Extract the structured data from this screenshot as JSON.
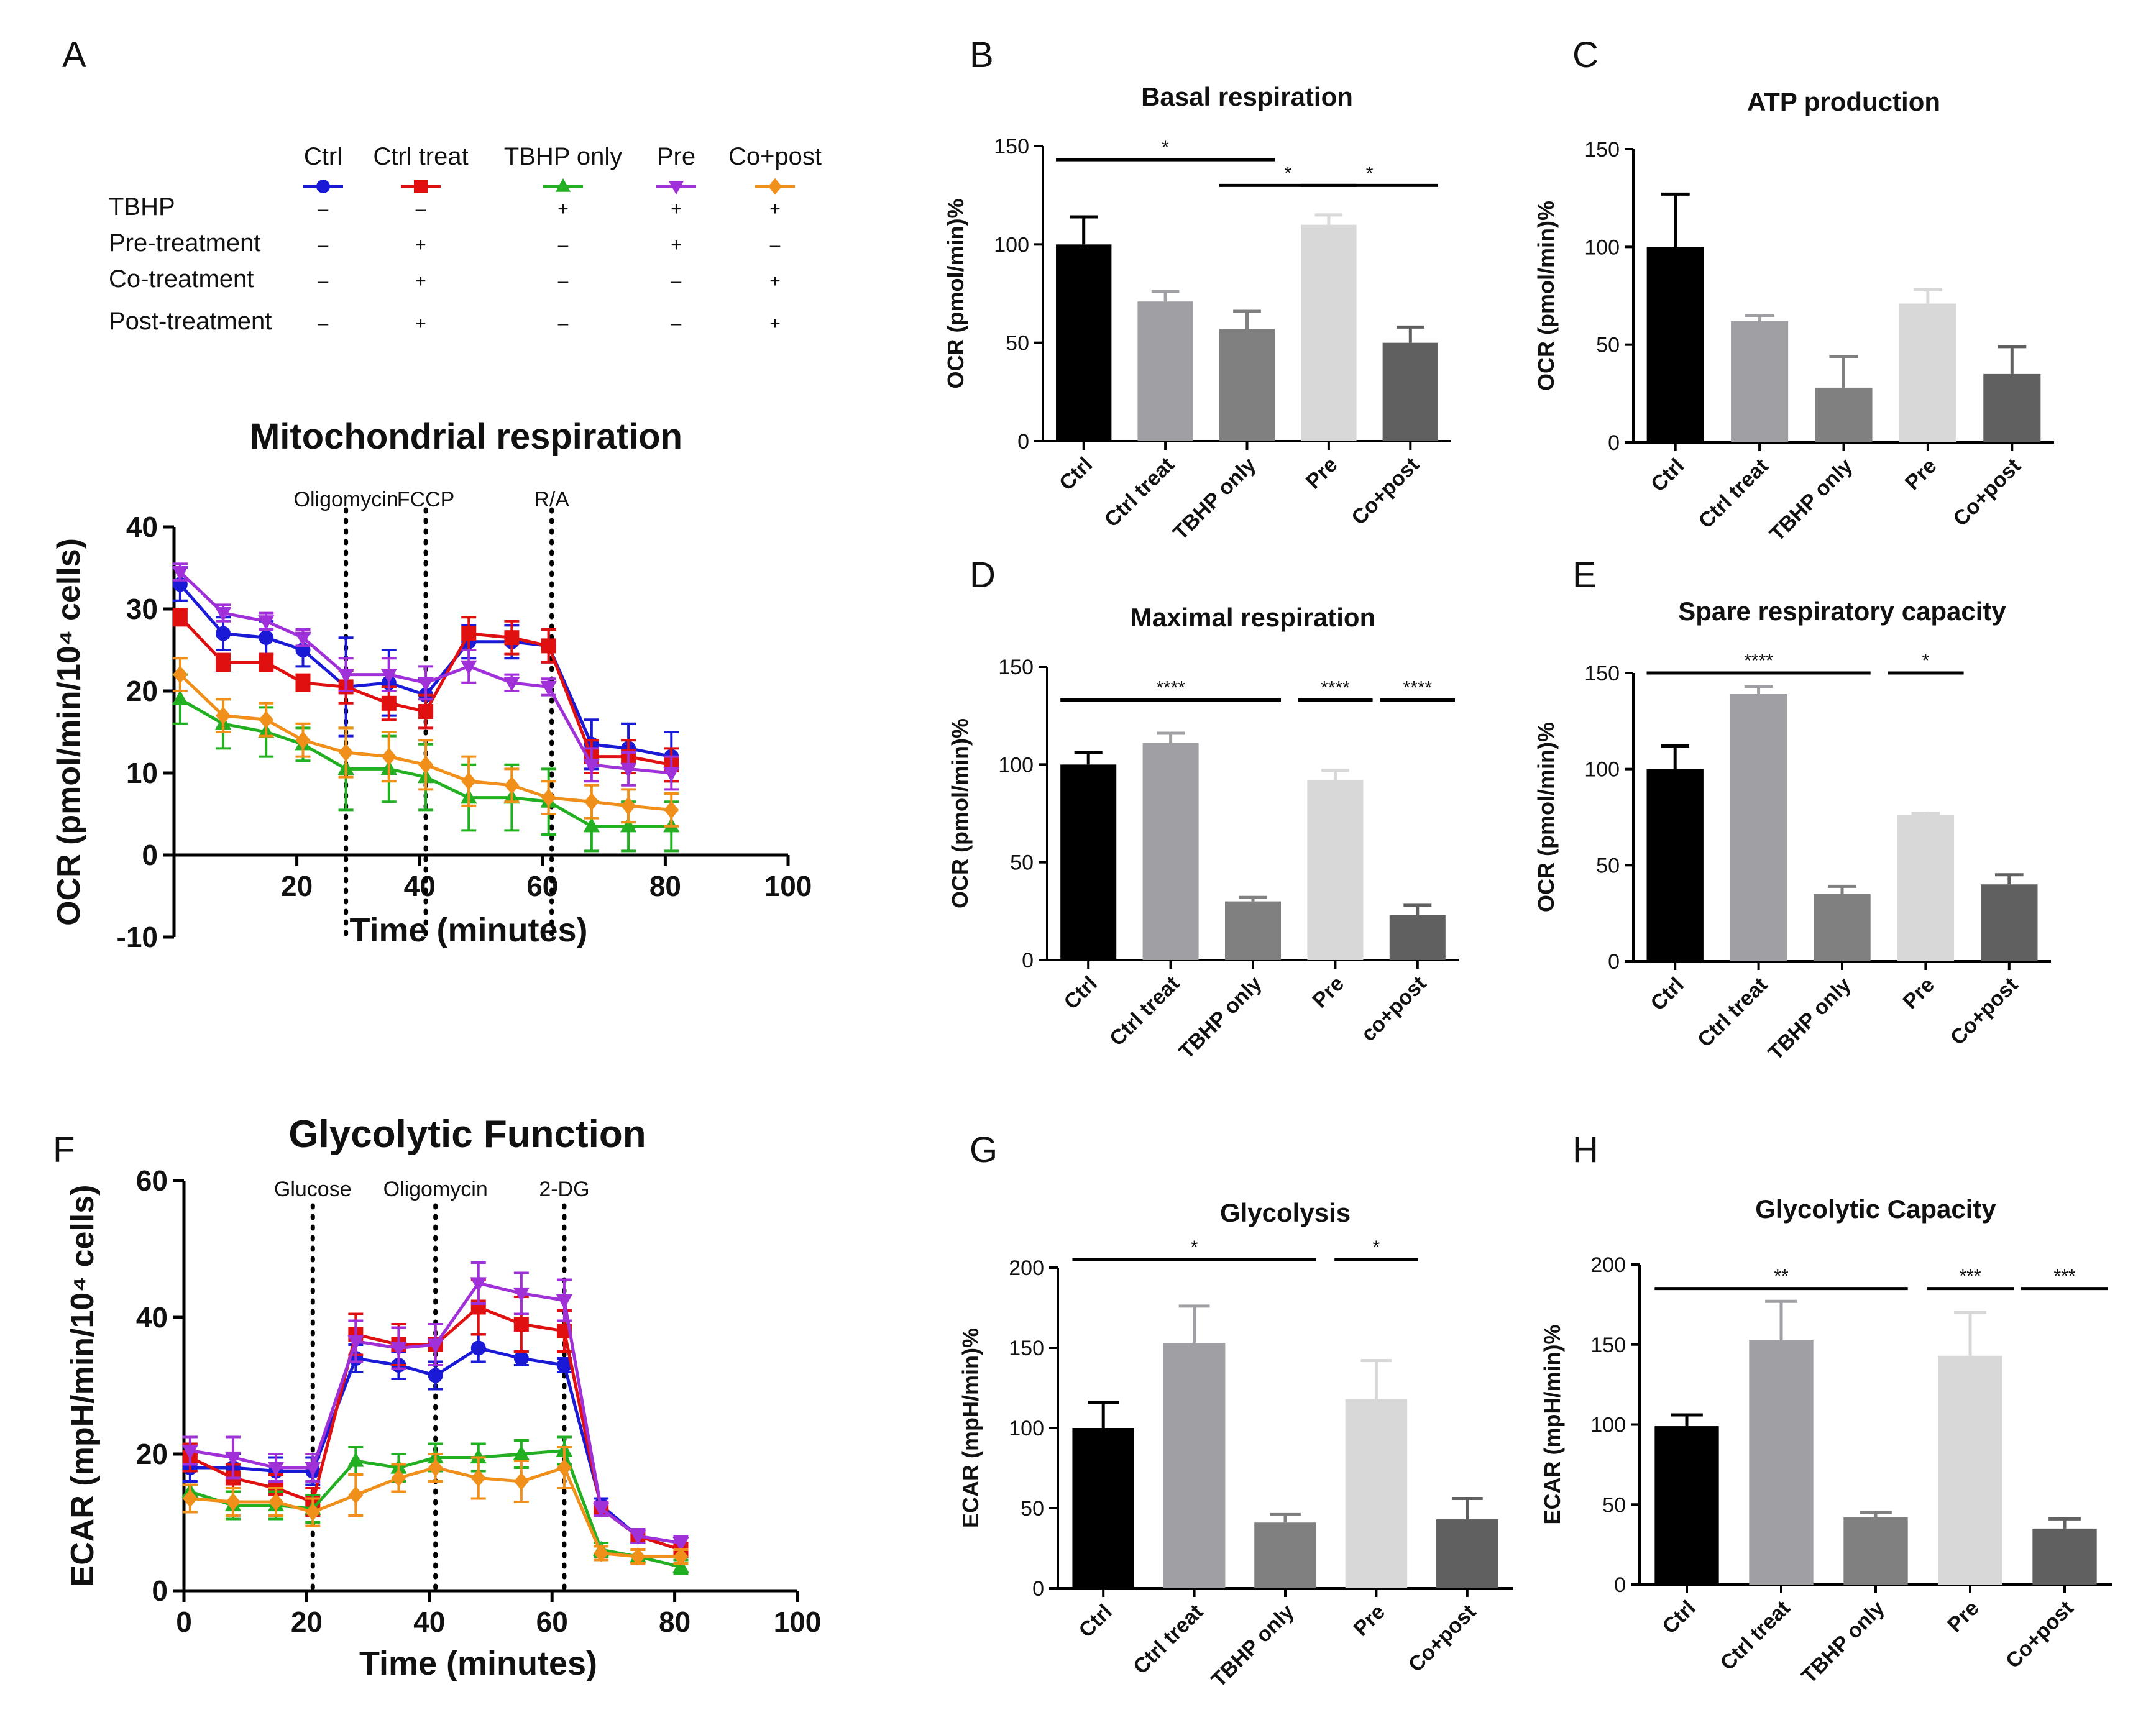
{
  "figure": {
    "panel_labels": [
      "A",
      "B",
      "C",
      "D",
      "E",
      "F",
      "G",
      "H"
    ],
    "colors": {
      "Ctrl": "#1a1ad6",
      "Ctrl treat": "#e01010",
      "TBHP only": "#22b022",
      "Pre": "#a030d8",
      "Co+post": "#f0901a",
      "bars": [
        "#000000",
        "#a0a0a4",
        "#808080",
        "#d8d8d8",
        "#606060"
      ]
    }
  },
  "legend_table": {
    "groups": [
      "Ctrl",
      "Ctrl treat",
      "TBHP only",
      "Pre",
      "Co+post"
    ],
    "markers": [
      "circle",
      "square",
      "triangle-up",
      "triangle-down",
      "diamond"
    ],
    "rows": [
      {
        "label": "TBHP",
        "cells": [
          "–",
          "–",
          "+",
          "+",
          "+"
        ]
      },
      {
        "label": "Pre-treatment",
        "cells": [
          "–",
          "+",
          "–",
          "+",
          "–"
        ]
      },
      {
        "label": "Co-treatment",
        "cells": [
          "–",
          "+",
          "–",
          "–",
          "+"
        ]
      },
      {
        "label": "Post-treatment",
        "cells": [
          "–",
          "+",
          "–",
          "–",
          "+"
        ]
      }
    ]
  },
  "chart_data": [
    {
      "id": "A",
      "type": "line",
      "title": "Mitochondrial respiration",
      "xlabel": "Time (minutes)",
      "ylabel": "OCR (pmol/min/10⁴ cells)",
      "xlim": [
        0,
        100
      ],
      "ylim": [
        -10,
        40
      ],
      "xticks": [
        20,
        40,
        60,
        80,
        100
      ],
      "yticks": [
        -10,
        0,
        10,
        20,
        30,
        40
      ],
      "x": [
        1,
        8,
        15,
        21,
        28,
        35,
        41,
        48,
        55,
        61,
        68,
        74,
        81
      ],
      "injections": [
        {
          "label": "Oligomycin",
          "x": 28
        },
        {
          "label": "FCCP",
          "x": 41
        },
        {
          "label": "R/A",
          "x": 61.5
        }
      ],
      "series": [
        {
          "name": "Ctrl",
          "marker": "circle",
          "values": [
            33,
            27,
            26.5,
            25,
            20.5,
            21,
            19.5,
            26,
            26,
            25.5,
            13.5,
            13,
            12
          ],
          "errors": [
            2,
            2,
            2,
            2,
            6,
            4,
            2,
            2,
            2,
            2,
            3,
            3,
            3
          ]
        },
        {
          "name": "Ctrl treat",
          "marker": "square",
          "values": [
            29,
            23.5,
            23.5,
            21,
            20.5,
            18.5,
            17.5,
            27,
            26.5,
            25.5,
            12,
            12,
            11
          ],
          "errors": [
            1,
            1,
            1,
            1,
            2,
            2,
            2,
            2,
            2,
            2,
            2,
            2,
            2
          ]
        },
        {
          "name": "TBHP only",
          "marker": "triangle-up",
          "values": [
            19,
            16,
            15,
            13.5,
            10.5,
            10.5,
            9.5,
            7,
            7,
            6.5,
            3.5,
            3.5,
            3.5
          ],
          "errors": [
            3,
            3,
            3,
            2,
            5,
            4,
            4,
            4,
            4,
            4,
            3,
            3,
            3
          ]
        },
        {
          "name": "Pre",
          "marker": "triangle-down",
          "values": [
            34.5,
            29.5,
            28.5,
            26.5,
            22,
            22,
            21,
            23,
            21,
            20.5,
            11,
            10.5,
            10
          ],
          "errors": [
            1,
            1,
            1,
            1,
            2,
            2,
            2,
            2,
            1,
            1,
            2,
            2,
            2
          ]
        },
        {
          "name": "Co+post",
          "marker": "diamond",
          "values": [
            22,
            17,
            16.5,
            14,
            12.5,
            12,
            11,
            9,
            8.5,
            7,
            6.5,
            6,
            5.5
          ],
          "errors": [
            2,
            2,
            2,
            2,
            3,
            3,
            3,
            3,
            2,
            2,
            2,
            2,
            2
          ]
        }
      ]
    },
    {
      "id": "F",
      "type": "line",
      "title": "Glycolytic Function",
      "xlabel": "Time (minutes)",
      "ylabel": "ECAR (mpH/min/10⁴ cells)",
      "xlim": [
        0,
        100
      ],
      "ylim": [
        0,
        60
      ],
      "xticks": [
        0,
        20,
        40,
        60,
        80,
        100
      ],
      "yticks": [
        0,
        20,
        40,
        60
      ],
      "x": [
        1,
        8,
        15,
        21,
        28,
        35,
        41,
        48,
        55,
        62,
        68,
        74,
        81
      ],
      "injections": [
        {
          "label": "Glucose",
          "x": 21
        },
        {
          "label": "Oligomycin",
          "x": 41
        },
        {
          "label": "2-DG",
          "x": 62
        }
      ],
      "series": [
        {
          "name": "Ctrl",
          "marker": "circle",
          "values": [
            18,
            18,
            17.5,
            17.5,
            34,
            33,
            31.5,
            35.5,
            34,
            33,
            12.5,
            8,
            6
          ],
          "errors": [
            2,
            2,
            2,
            2,
            2,
            2,
            2,
            2,
            1,
            1,
            1,
            1,
            1
          ]
        },
        {
          "name": "Ctrl treat",
          "marker": "square",
          "values": [
            19.5,
            16.5,
            15,
            13,
            37.5,
            36,
            36,
            41.5,
            39,
            38,
            12,
            8,
            6
          ],
          "errors": [
            2,
            2,
            2,
            2,
            3,
            3,
            3,
            4,
            4,
            3,
            1,
            1,
            1
          ]
        },
        {
          "name": "TBHP only",
          "marker": "triangle-up",
          "values": [
            14.5,
            12.5,
            12.5,
            12,
            19,
            18,
            19.5,
            19.5,
            20,
            20.5,
            6,
            5,
            3.5
          ],
          "errors": [
            1,
            2,
            2,
            2,
            2,
            2,
            2,
            2,
            2,
            2,
            1,
            1,
            1
          ]
        },
        {
          "name": "Pre",
          "marker": "triangle-down",
          "values": [
            20.5,
            19.5,
            18,
            18,
            36.5,
            35.5,
            36,
            45,
            43.5,
            42.5,
            12,
            8,
            7
          ],
          "errors": [
            2,
            3,
            2,
            2,
            3,
            3,
            3,
            3,
            3,
            3,
            1,
            1,
            1
          ]
        },
        {
          "name": "Co+post",
          "marker": "diamond",
          "values": [
            13.5,
            13,
            13,
            11.5,
            14,
            16.5,
            18,
            16.5,
            16,
            18,
            5.5,
            5,
            5
          ],
          "errors": [
            2,
            2,
            2,
            2,
            3,
            2,
            2,
            3,
            3,
            3,
            1,
            1,
            1
          ]
        }
      ]
    },
    {
      "id": "B",
      "type": "bar",
      "title": "Basal respiration",
      "ylabel": "OCR (pmol/min)%",
      "ylim": [
        0,
        150
      ],
      "yticks": [
        0,
        50,
        100,
        150
      ],
      "categories": [
        "Ctrl",
        "Ctrl treat",
        "TBHP only",
        "Pre",
        "Co+post"
      ],
      "values": [
        100,
        71,
        57,
        110,
        50
      ],
      "errors": [
        14,
        5,
        9,
        5,
        8
      ],
      "significance": [
        {
          "from": 0,
          "to": 2,
          "label": "*",
          "y": 143
        },
        {
          "from": 2,
          "to": 3,
          "label": "*",
          "y": 130
        },
        {
          "from": 3,
          "to": 4,
          "label": "*",
          "y": 130
        }
      ]
    },
    {
      "id": "C",
      "type": "bar",
      "title": "ATP production",
      "ylabel": "OCR (pmol/min)%",
      "ylim": [
        0,
        150
      ],
      "yticks": [
        0,
        50,
        100,
        150
      ],
      "categories": [
        "Ctrl",
        "Ctrl treat",
        "TBHP only",
        "Pre",
        "Co+post"
      ],
      "values": [
        100,
        62,
        28,
        71,
        35
      ],
      "errors": [
        27,
        3,
        16,
        7,
        14
      ],
      "significance": []
    },
    {
      "id": "D",
      "type": "bar",
      "title": "Maximal respiration",
      "ylabel": "OCR (pmol/min)%",
      "ylim": [
        0,
        150
      ],
      "yticks": [
        0,
        50,
        100,
        150
      ],
      "categories": [
        "Ctrl",
        "Ctrl treat",
        "TBHP only",
        "Pre",
        "co+post"
      ],
      "values": [
        100,
        111,
        30,
        92,
        23
      ],
      "errors": [
        6,
        5,
        2,
        5,
        5
      ],
      "significance": [
        {
          "from": 0,
          "to": 2,
          "label": "****",
          "y": 133
        },
        {
          "from": 2.5,
          "to": 3.5,
          "label": "****",
          "y": 133
        },
        {
          "from": 3.5,
          "to": 4.5,
          "label": "****",
          "y": 133
        }
      ]
    },
    {
      "id": "E",
      "type": "bar",
      "title": "Spare respiratory capacity",
      "ylabel": "OCR (pmol/min)%",
      "ylim": [
        0,
        150
      ],
      "yticks": [
        0,
        50,
        100,
        150
      ],
      "categories": [
        "Ctrl",
        "Ctrl treat",
        "TBHP only",
        "Pre",
        "Co+post"
      ],
      "values": [
        100,
        139,
        35,
        76,
        40
      ],
      "errors": [
        12,
        4,
        4,
        1,
        5
      ],
      "significance": [
        {
          "from": 0,
          "to": 2,
          "label": "****",
          "y": 150
        },
        {
          "from": 2.5,
          "to": 3.5,
          "label": "*",
          "y": 150
        }
      ]
    },
    {
      "id": "G",
      "type": "bar",
      "title": "Glycolysis",
      "ylabel": "ECAR (mpH/min)%",
      "ylim": [
        0,
        200
      ],
      "yticks": [
        0,
        50,
        100,
        150,
        200
      ],
      "categories": [
        "Ctrl",
        "Ctrl treat",
        "TBHP only",
        "Pre",
        "Co+post"
      ],
      "values": [
        100,
        153,
        41,
        118,
        43
      ],
      "errors": [
        16,
        23,
        5,
        24,
        13
      ],
      "significance": [
        {
          "from": 0,
          "to": 2,
          "label": "*",
          "y": 205
        },
        {
          "from": 2.5,
          "to": 3.5,
          "label": "*",
          "y": 205
        }
      ]
    },
    {
      "id": "H",
      "type": "bar",
      "title": "Glycolytic Capacity",
      "ylabel": "ECAR (mpH/min)%",
      "ylim": [
        0,
        200
      ],
      "yticks": [
        0,
        50,
        100,
        150,
        200
      ],
      "categories": [
        "Ctrl",
        "Ctrl treat",
        "TBHP only",
        "Pre",
        "Co+post"
      ],
      "values": [
        99,
        153,
        42,
        143,
        35
      ],
      "errors": [
        7,
        24,
        3,
        27,
        6
      ],
      "significance": [
        {
          "from": 0,
          "to": 2,
          "label": "**",
          "y": 185
        },
        {
          "from": 2.5,
          "to": 3.5,
          "label": "***",
          "y": 185
        },
        {
          "from": 3.5,
          "to": 4.5,
          "label": "***",
          "y": 185
        }
      ]
    }
  ]
}
